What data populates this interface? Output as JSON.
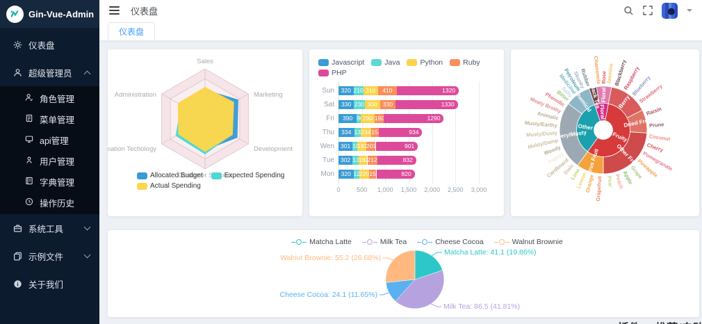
{
  "sidebar": {
    "logo_text": "Gin-Vue-Admin",
    "items": [
      {
        "label": "仪表盘",
        "icon": "gear-icon"
      },
      {
        "label": "超级管理员",
        "icon": "user-icon",
        "expanded": true,
        "children": [
          {
            "label": "角色管理",
            "icon": "role-icon"
          },
          {
            "label": "菜单管理",
            "icon": "menu-list-icon"
          },
          {
            "label": "api管理",
            "icon": "monitor-icon"
          },
          {
            "label": "用户管理",
            "icon": "user-circle-icon"
          },
          {
            "label": "字典管理",
            "icon": "dictionary-icon"
          },
          {
            "label": "操作历史",
            "icon": "history-icon"
          }
        ]
      },
      {
        "label": "系统工具",
        "icon": "toolbox-icon",
        "expanded": false
      },
      {
        "label": "示例文件",
        "icon": "files-icon",
        "expanded": false
      },
      {
        "label": "关于我们",
        "icon": "info-icon"
      }
    ]
  },
  "header": {
    "breadcrumb": "仪表盘"
  },
  "tabbar": {
    "active_tab": "仪表盘"
  },
  "footer_partial_heading": "插件 ❤ 推荐(自助收录)",
  "chart_data": [
    {
      "type": "radar",
      "indicators": [
        "Sales",
        "Marketing",
        "Development",
        "Customer Support",
        "Information Techology",
        "Administration"
      ],
      "series": [
        {
          "name": "Allocated Budget",
          "color": "#3a9bd5",
          "values_pct": [
            58,
            76,
            74,
            62,
            55,
            58
          ]
        },
        {
          "name": "Expected Spending",
          "color": "#4fd8d2",
          "values_pct": [
            55,
            62,
            62,
            70,
            67,
            55
          ]
        },
        {
          "name": "Actual Spending",
          "color": "#fdd64b",
          "values_pct": [
            63,
            66,
            63,
            65,
            61,
            62
          ]
        }
      ],
      "grid_fill_colors": [
        "#f5e4e8",
        "#f9eef1"
      ],
      "legend_position": "bottom-left"
    },
    {
      "type": "bar",
      "orientation": "horizontal",
      "stacked": true,
      "categories": [
        "Mon",
        "Tue",
        "Wen",
        "Thu",
        "Fri",
        "Sat",
        "Sun"
      ],
      "display_order_top_to_bottom": [
        "Sun",
        "Sat",
        "Fri",
        "Thu",
        "Wen",
        "Tue",
        "Mon"
      ],
      "series": [
        {
          "name": "Javascript",
          "color": "#3a9bd5",
          "values": [
            320,
            302,
            301,
            334,
            390,
            330,
            320
          ]
        },
        {
          "name": "Java",
          "color": "#5fd9d3",
          "values": [
            120,
            132,
            101,
            134,
            90,
            230,
            210
          ]
        },
        {
          "name": "Python",
          "color": "#fbd44b",
          "values": [
            220,
            182,
            191,
            234,
            290,
            330,
            310
          ]
        },
        {
          "name": "Ruby",
          "color": "#fa8e5c",
          "values": [
            150,
            212,
            201,
            154,
            190,
            330,
            410
          ]
        },
        {
          "name": "PHP",
          "color": "#de4a9b",
          "values": [
            820,
            832,
            901,
            934,
            1290,
            1330,
            1320
          ]
        }
      ],
      "xticks": [
        "0",
        "500",
        "1,000",
        "1,500",
        "2,000",
        "2,500",
        "3,000"
      ],
      "xmax": 3000,
      "legend_position": "top"
    },
    {
      "type": "sunburst",
      "rings": {
        "inner": [
          {
            "name": "Fruity",
            "a0": 11,
            "a1": 216,
            "color": "#d63a3a"
          },
          {
            "name": "Other",
            "a0": 216,
            "a1": 341,
            "color": "#1ba0ad"
          },
          {
            "name": "Floral",
            "a0": 341,
            "a1": 371,
            "color": "#d42a87"
          }
        ],
        "middle": [
          {
            "name": "Floral",
            "a0": 351,
            "a1": 371,
            "color": "#e07bae"
          },
          {
            "name": "Berry",
            "a0": 11,
            "a1": 63,
            "color": "#d95b5b"
          },
          {
            "name": "Dried Fruit",
            "a0": 63,
            "a1": 94,
            "color": "#dd7467"
          },
          {
            "name": "Other Fruit",
            "a0": 94,
            "a1": 180,
            "color": "#cf4a4a"
          },
          {
            "name": "Citrus Fruit",
            "a0": 180,
            "a1": 216,
            "color": "#f5a13d"
          },
          {
            "name": "Papery/Musty",
            "a0": 216,
            "a1": 307,
            "color": "#9da9b2"
          },
          {
            "name": "Chemical",
            "a0": 307,
            "a1": 341,
            "color": "#8db6c7"
          },
          {
            "name": "Black Tea",
            "a0": 341,
            "a1": 351,
            "color": "#6e4548"
          }
        ],
        "outer_labels": [
          {
            "text": "Chamomile",
            "angle": 354,
            "color": "#f0a04e"
          },
          {
            "text": "Rose",
            "angle": 1,
            "color": "#e05c5c"
          },
          {
            "text": "Jasmine",
            "angle": 7,
            "color": "#ecc56e"
          },
          {
            "text": "Blackberry",
            "angle": 17,
            "color": "#6d4c57"
          },
          {
            "text": "Raspberry",
            "angle": 29,
            "color": "#d84a66"
          },
          {
            "text": "Blueberry",
            "angle": 41,
            "color": "#8f9cc7"
          },
          {
            "text": "Strawberry",
            "angle": 53,
            "color": "#e4707e"
          },
          {
            "text": "Raisin",
            "angle": 70,
            "color": "#a6555f"
          },
          {
            "text": "Prune",
            "angle": 85,
            "color": "#8f5d6b"
          },
          {
            "text": "Coconut",
            "angle": 98,
            "color": "#f0907b"
          },
          {
            "text": "Cherry",
            "angle": 109,
            "color": "#dd5a5a"
          },
          {
            "text": "Pomegranate",
            "angle": 120,
            "color": "#e87a8b"
          },
          {
            "text": "Pineapple",
            "angle": 131,
            "color": "#f2a35c"
          },
          {
            "text": "Grape",
            "angle": 142,
            "color": "#a9cb7f"
          },
          {
            "text": "Apple",
            "angle": 153,
            "color": "#8cbf6e"
          },
          {
            "text": "Peach",
            "angle": 163,
            "color": "#f2a8a0"
          },
          {
            "text": "Pear",
            "angle": 173,
            "color": "#c8d48c"
          },
          {
            "text": "Grapefruit",
            "angle": 184,
            "color": "#f08a6a"
          },
          {
            "text": "Orange",
            "angle": 194,
            "color": "#f5a643"
          },
          {
            "text": "Lemon",
            "angle": 203,
            "color": "#eed366"
          },
          {
            "text": "Lime",
            "angle": 212,
            "color": "#bcd662"
          },
          {
            "text": "Stale",
            "angle": 221,
            "color": "#cfc3a4"
          },
          {
            "text": "Cardboard",
            "angle": 230,
            "color": "#c6b894"
          },
          {
            "text": "Papery",
            "angle": 239,
            "color": "#f0ebdd"
          },
          {
            "text": "Woody",
            "angle": 248,
            "color": "#b5aa8d"
          },
          {
            "text": "Moldy/Damp",
            "angle": 257,
            "color": "#ccc09e"
          },
          {
            "text": "Musty/Dusty",
            "angle": 266,
            "color": "#cfc1a0"
          },
          {
            "text": "Musty/Earthy",
            "angle": 275,
            "color": "#c1b08e"
          },
          {
            "text": "Animalic",
            "angle": 284,
            "color": "#bcae93"
          },
          {
            "text": "Meaty Brothy",
            "angle": 293,
            "color": "#dc9090"
          },
          {
            "text": "Phenolic",
            "angle": 302,
            "color": "#e4707e"
          },
          {
            "text": "Bitter",
            "angle": 310,
            "color": "#a0c678"
          },
          {
            "text": "Salty",
            "angle": 316,
            "color": "#bed9ea"
          },
          {
            "text": "Medicinal",
            "angle": 322,
            "color": "#72b7c7"
          },
          {
            "text": "Petroleum",
            "angle": 328,
            "color": "#539db2"
          },
          {
            "text": "Skunky",
            "angle": 334,
            "color": "#a2b6c2"
          },
          {
            "text": "Rubber",
            "angle": 341,
            "color": "#7c8187"
          }
        ]
      }
    },
    {
      "type": "pie",
      "legend": [
        "Matcha Latte",
        "Milk Tea",
        "Cheese Cocoa",
        "Walnut Brownie"
      ],
      "slices": [
        {
          "name": "Matcha Latte",
          "value": 41.1,
          "pct": 19.86,
          "color": "#2ec7c9",
          "label": "Matcha Latte: 41.1 (19.86%)"
        },
        {
          "name": "Milk Tea",
          "value": 86.5,
          "pct": 41.81,
          "color": "#b6a2de",
          "label": "Milk Tea: 86.5 (41.81%)"
        },
        {
          "name": "Cheese Cocoa",
          "value": 24.1,
          "pct": 11.65,
          "color": "#5ab1ef",
          "label": "Cheese Cocoa: 24.1 (11.65%)"
        },
        {
          "name": "Walnut Brownie",
          "value": 55.2,
          "pct": 26.68,
          "color": "#ffb980",
          "label": "Walnut Brownie: 55.2 (26.68%)"
        }
      ],
      "legend_position": "top"
    }
  ]
}
